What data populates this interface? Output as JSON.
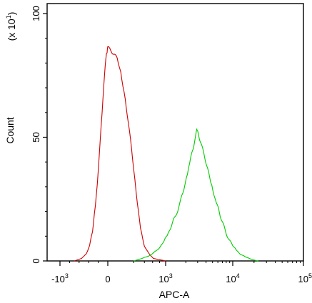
{
  "chart_data": {
    "type": "line",
    "title": "",
    "xlabel": "APC-A",
    "ylabel": "Count",
    "y_multiplier_label": "(x 10^1)",
    "x_scale": "biexponential",
    "x_ticks": [
      {
        "value": -1000,
        "label": "-10",
        "exp": "3"
      },
      {
        "value": 0,
        "label": "0",
        "exp": ""
      },
      {
        "value": 1000,
        "label": "10",
        "exp": "3"
      },
      {
        "value": 10000,
        "label": "10",
        "exp": "4"
      },
      {
        "value": 100000,
        "label": "10",
        "exp": "5"
      }
    ],
    "y_ticks": [
      {
        "value": 0,
        "label": "0"
      },
      {
        "value": 50,
        "label": "50"
      },
      {
        "value": 100,
        "label": "100"
      }
    ],
    "ylim": [
      0,
      100
    ],
    "grid": false,
    "series": [
      {
        "color": "#cc0000",
        "x": [
          -700,
          -550,
          -450,
          -380,
          -320,
          -260,
          -220,
          -180,
          -140,
          -100,
          -70,
          -40,
          -15,
          0,
          20,
          50,
          90,
          140,
          200,
          260,
          320,
          400,
          500,
          620,
          800,
          1000
        ],
        "y": [
          0,
          1,
          3,
          6,
          12,
          22,
          32,
          42,
          55,
          66,
          75,
          82,
          85,
          86,
          83,
          76,
          66,
          52,
          38,
          24,
          13,
          6,
          3,
          1,
          0.5,
          0
        ]
      },
      {
        "color": "#00cc00",
        "x": [
          200,
          350,
          500,
          700,
          900,
          1100,
          1400,
          1800,
          2200,
          2600,
          2900,
          3300,
          3800,
          4500,
          5500,
          6500,
          8000,
          10000,
          12500,
          15500,
          19000,
          23000
        ],
        "y": [
          0,
          1,
          2,
          4,
          7,
          11,
          18,
          27,
          38,
          46,
          53,
          48,
          42,
          34,
          25,
          18,
          11,
          6,
          3,
          1.5,
          0.5,
          0
        ]
      }
    ]
  }
}
